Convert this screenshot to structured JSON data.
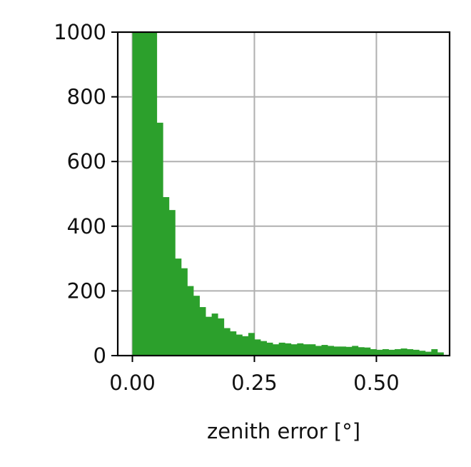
{
  "chart_data": {
    "type": "bar",
    "subtype": "histogram",
    "xlabel": "zenith error [°]",
    "ylabel": "",
    "xlim": [
      -0.03,
      0.65
    ],
    "ylim": [
      0,
      1000
    ],
    "xticks": [
      0.0,
      0.25,
      0.5
    ],
    "xtick_labels": [
      "0.00",
      "0.25",
      "0.50"
    ],
    "yticks": [
      0,
      200,
      400,
      600,
      800,
      1000
    ],
    "ytick_labels": [
      "0",
      "200",
      "400",
      "600",
      "800",
      "1000"
    ],
    "grid": true,
    "bar_color": "#2ca02c",
    "grid_color": "#b0b0b0",
    "bin_width": 0.0125,
    "bin_start": 0.0,
    "values": [
      1000,
      1000,
      1000,
      1000,
      720,
      490,
      450,
      300,
      270,
      215,
      185,
      150,
      120,
      130,
      115,
      85,
      75,
      65,
      60,
      70,
      50,
      45,
      40,
      35,
      40,
      38,
      35,
      38,
      35,
      35,
      30,
      33,
      30,
      28,
      28,
      27,
      30,
      26,
      25,
      20,
      18,
      20,
      18,
      20,
      22,
      20,
      18,
      15,
      12,
      20,
      10
    ]
  }
}
